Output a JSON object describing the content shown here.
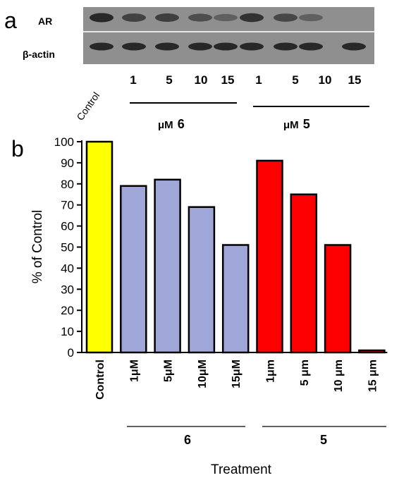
{
  "panel_a": {
    "label": "a",
    "blot_labels": [
      "AR",
      "β-actin"
    ],
    "lane_control_label": "Control",
    "lane_concentrations": [
      "1",
      "5",
      "10",
      "15",
      "1",
      "5",
      "10",
      "15"
    ],
    "group_labels": [
      {
        "unit": "μM",
        "compound": "6"
      },
      {
        "unit": "μM",
        "compound": "5"
      }
    ],
    "ar_band_intensity": [
      1.0,
      0.8,
      0.82,
      0.69,
      0.52,
      0.92,
      0.76,
      0.52,
      0.0
    ],
    "actin_band_intensity": [
      1,
      1,
      1,
      1,
      1,
      1,
      1,
      1,
      1
    ]
  },
  "panel_b": {
    "label": "b",
    "group_labels": [
      "6",
      "5"
    ]
  },
  "colors": {
    "control": "#ffff00",
    "compound6": "#9fa6d8",
    "compound5": "#ff0000",
    "edge": "#000000"
  },
  "chart_data": {
    "type": "bar",
    "title": "",
    "xlabel": "Treatment",
    "ylabel": "% of Control",
    "ylim": [
      0,
      100
    ],
    "yticks": [
      0,
      10,
      20,
      30,
      40,
      50,
      60,
      70,
      80,
      90,
      100
    ],
    "grid": false,
    "categories": [
      "Control",
      "1μM",
      "5μM",
      "10μM",
      "15μM",
      "1μm",
      "5 μm",
      "10 μm",
      "15 μm"
    ],
    "values": [
      100,
      79,
      82,
      69,
      51,
      91,
      75,
      51,
      1
    ],
    "bar_groups": [
      "control",
      "compound6",
      "compound6",
      "compound6",
      "compound6",
      "compound5",
      "compound5",
      "compound5",
      "compound5"
    ]
  }
}
